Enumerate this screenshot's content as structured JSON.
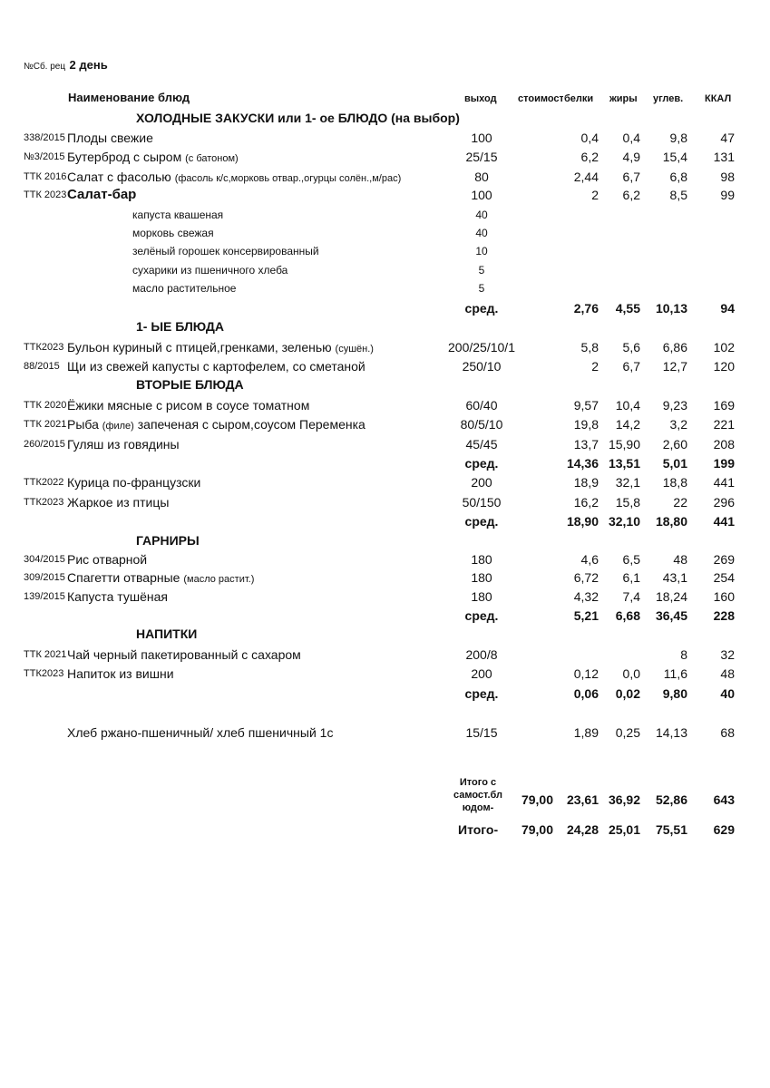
{
  "doc": {
    "prefix": "№Сб. рец",
    "day": "2 день"
  },
  "headers": {
    "name": "Наименование  блюд",
    "output": "выход",
    "cost": "стоимость",
    "protein": "белки",
    "fat": "жиры",
    "carbs": "углев.",
    "kcal": "ККАЛ"
  },
  "rows": [
    {
      "kind": "section",
      "name": "ХОЛОДНЫЕ  ЗАКУСКИ  или 1- ое БЛЮДО (на выбор)"
    },
    {
      "kind": "item",
      "code": "338/2015",
      "name": "Плоды свежие",
      "out": "100",
      "b": "0,4",
      "f": "0,4",
      "c": "9,8",
      "k": "47"
    },
    {
      "kind": "item",
      "code": "№3/2015",
      "name": "Бутерброд с сыром",
      "note": "(с батоном)",
      "out": "25/15",
      "b": "6,2",
      "f": "4,9",
      "c": "15,4",
      "k": "131"
    },
    {
      "kind": "item",
      "code": "ТТК 2016",
      "name": "Салат с фасолью",
      "note": "(фасоль к/с,морковь отвар.,огурцы солён.,м/рас)",
      "out": "80",
      "b": "2,44",
      "f": "6,7",
      "c": "6,8",
      "k": "98"
    },
    {
      "kind": "item",
      "code": "ТТК 2023",
      "name": "Салат-бар",
      "bold": true,
      "out": "100",
      "b": "2",
      "f": "6,2",
      "c": "8,5",
      "k": "99"
    },
    {
      "kind": "sub",
      "name": "капуста квашеная",
      "out": "40"
    },
    {
      "kind": "sub",
      "name": "морковь свежая",
      "out": "40"
    },
    {
      "kind": "sub",
      "name": "зелёный горошек консервированный",
      "out": "10"
    },
    {
      "kind": "sub",
      "name": "сухарики из пшеничного хлеба",
      "out": "5"
    },
    {
      "kind": "sub",
      "name": "масло растительное",
      "out": "5"
    },
    {
      "kind": "avg",
      "out": "сред.",
      "b": "2,76",
      "f": "4,55",
      "c": "10,13",
      "k": "94"
    },
    {
      "kind": "section",
      "name": "1- ЫЕ БЛЮДА"
    },
    {
      "kind": "item",
      "code": "ТТК2023",
      "name": "Бульон куриный с птицей,гренками, зеленью",
      "note": "(сушён.)",
      "out": "200/25/10/1",
      "b": "5,8",
      "f": "5,6",
      "c": "6,86",
      "k": "102"
    },
    {
      "kind": "item",
      "code": "88/2015",
      "name": "Щи из свежей капусты с картофелем, со сметаной",
      "out": "250/10",
      "b": "2",
      "f": "6,7",
      "c": "12,7",
      "k": "120"
    },
    {
      "kind": "section",
      "name": "ВТОРЫЕ  БЛЮДА"
    },
    {
      "kind": "item",
      "code": "ТТК 2020",
      "name": "Ёжики мясные с рисом в соусе томатном",
      "out": "60/40",
      "b": "9,57",
      "f": "10,4",
      "c": "9,23",
      "k": "169"
    },
    {
      "kind": "item",
      "code": "ТТК 2021",
      "name": "Рыба",
      "note": "(филе)",
      "name2": "запеченая с сыром,соусом Переменка",
      "out": "80/5/10",
      "b": "19,8",
      "f": "14,2",
      "c": "3,2",
      "k": "221"
    },
    {
      "kind": "item",
      "code": "260/2015",
      "name": "Гуляш из говядины",
      "out": "45/45",
      "b": "13,7",
      "f": "15,90",
      "c": "2,60",
      "k": "208"
    },
    {
      "kind": "avg",
      "out": "сред.",
      "b": "14,36",
      "f": "13,51",
      "c": "5,01",
      "k": "199"
    },
    {
      "kind": "item",
      "code": "ТТК2022",
      "name": "Курица по-французски",
      "out": "200",
      "b": "18,9",
      "f": "32,1",
      "c": "18,8",
      "k": "441"
    },
    {
      "kind": "item",
      "code": "ТТК2023",
      "name": "  Жаркое из птицы",
      "out": "50/150",
      "b": "16,2",
      "f": "15,8",
      "c": "22",
      "k": "296"
    },
    {
      "kind": "avg",
      "out": "сред.",
      "b": "18,90",
      "f": "32,10",
      "c": "18,80",
      "k": "441"
    },
    {
      "kind": "section",
      "name": "ГАРНИРЫ"
    },
    {
      "kind": "item",
      "code": "304/2015",
      "name": "Рис отварной",
      "out": "180",
      "b": "4,6",
      "f": "6,5",
      "c": "48",
      "k": "269"
    },
    {
      "kind": "item",
      "code": "309/2015",
      "name": "Спагетти отварные",
      "note": "(масло растит.)",
      "out": "180",
      "b": "6,72",
      "f": "6,1",
      "c": "43,1",
      "k": "254"
    },
    {
      "kind": "item",
      "code": "139/2015",
      "name": "Капуста тушёная",
      "out": "180",
      "b": "4,32",
      "f": "7,4",
      "c": "18,24",
      "k": "160"
    },
    {
      "kind": "avg",
      "out": "сред.",
      "b": "5,21",
      "f": "6,68",
      "c": "36,45",
      "k": "228"
    },
    {
      "kind": "section",
      "name": "НАПИТКИ"
    },
    {
      "kind": "item",
      "code": "ТТК 2021",
      "name": "Чай черный пакетированный с сахаром",
      "out": "200/8",
      "b": "",
      "f": "",
      "c": "8",
      "k": "32"
    },
    {
      "kind": "item",
      "code": "ТТК2023",
      "name": "Напиток из вишни",
      "out": "200",
      "b": "0,12",
      "f": "0,0",
      "c": "11,6",
      "k": "48"
    },
    {
      "kind": "avg",
      "out": "сред.",
      "b": "0,06",
      "f": "0,02",
      "c": "9,80",
      "k": "40"
    },
    {
      "kind": "bread",
      "name": "Хлеб ржано-пшеничный/ хлеб пшеничный 1с",
      "out": "15/15",
      "b": "1,89",
      "f": "0,25",
      "c": "14,13",
      "k": "68"
    }
  ],
  "totals": [
    {
      "label": "Итого с самост.бл юдом-",
      "cost": "79,00",
      "b": "23,61",
      "f": "36,92",
      "c": "52,86",
      "k": "643"
    },
    {
      "label": "Итого-",
      "cost": "79,00",
      "b": "24,28",
      "f": "25,01",
      "c": "75,51",
      "k": "629"
    }
  ]
}
